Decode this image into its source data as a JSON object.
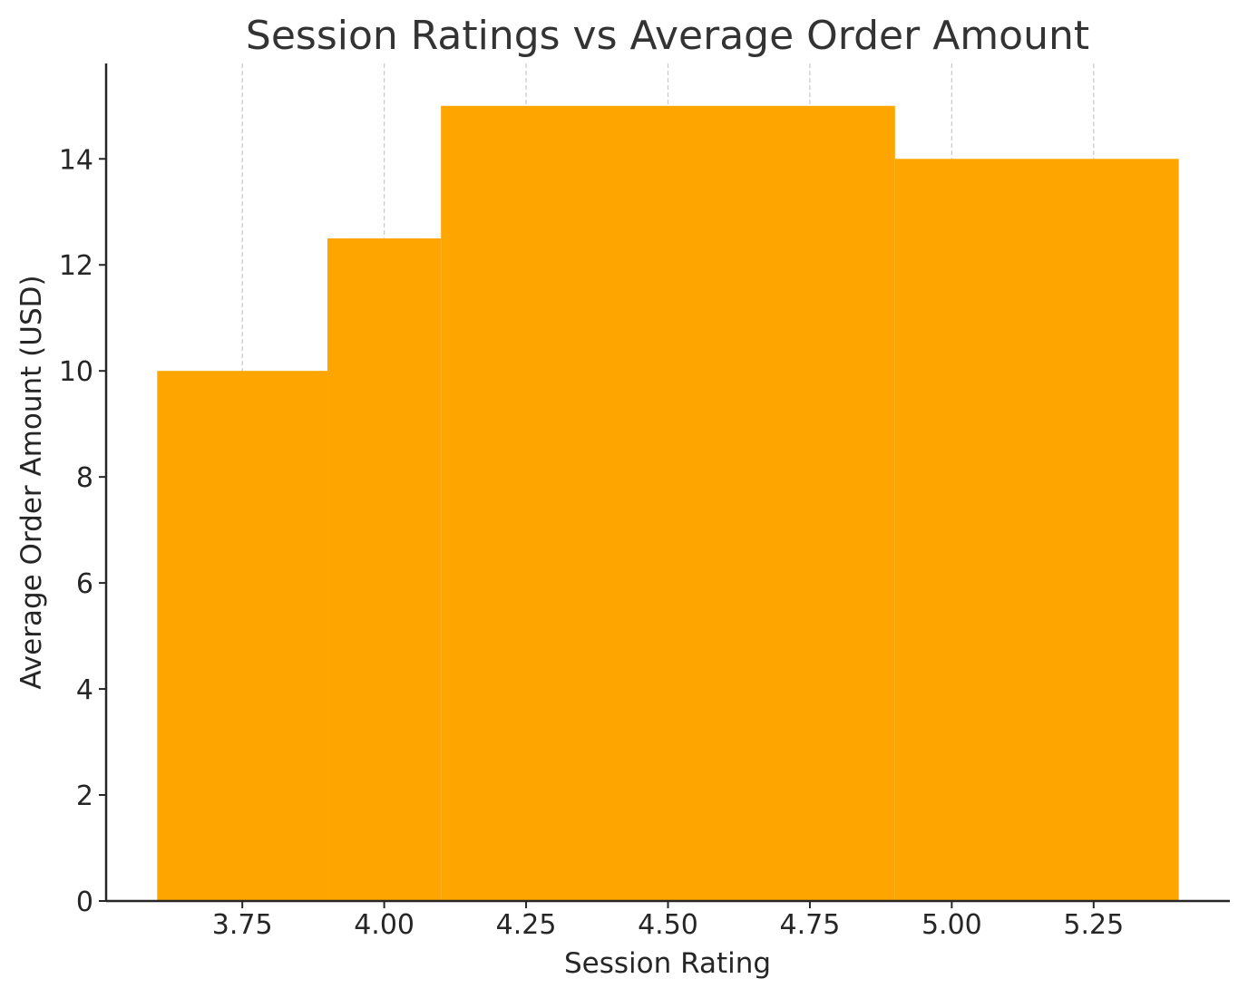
{
  "chart_data": {
    "type": "bar",
    "title": "Session Ratings vs Average Order Amount",
    "xlabel": "Session Rating",
    "ylabel": "Average Order Amount (USD)",
    "x": [
      3.75,
      4.0,
      4.5,
      5.15
    ],
    "widths": [
      0.3,
      0.2,
      0.8,
      0.5
    ],
    "values": [
      10,
      12.5,
      15,
      14
    ],
    "xlim": [
      3.51,
      5.49
    ],
    "ylim": [
      0,
      15.8
    ],
    "xticks": [
      "3.75",
      "4.00",
      "4.25",
      "4.50",
      "4.75",
      "5.00",
      "5.25"
    ],
    "xtick_values": [
      3.75,
      4.0,
      4.25,
      4.5,
      4.75,
      5.0,
      5.25
    ],
    "yticks": [
      "0",
      "2",
      "4",
      "6",
      "8",
      "10",
      "12",
      "14"
    ],
    "ytick_values": [
      0,
      2,
      4,
      6,
      8,
      10,
      12,
      14
    ],
    "grid": "x-dashed",
    "bar_color": "#FFA500",
    "grid_color": "#cccccc",
    "axis_color": "#262626"
  }
}
